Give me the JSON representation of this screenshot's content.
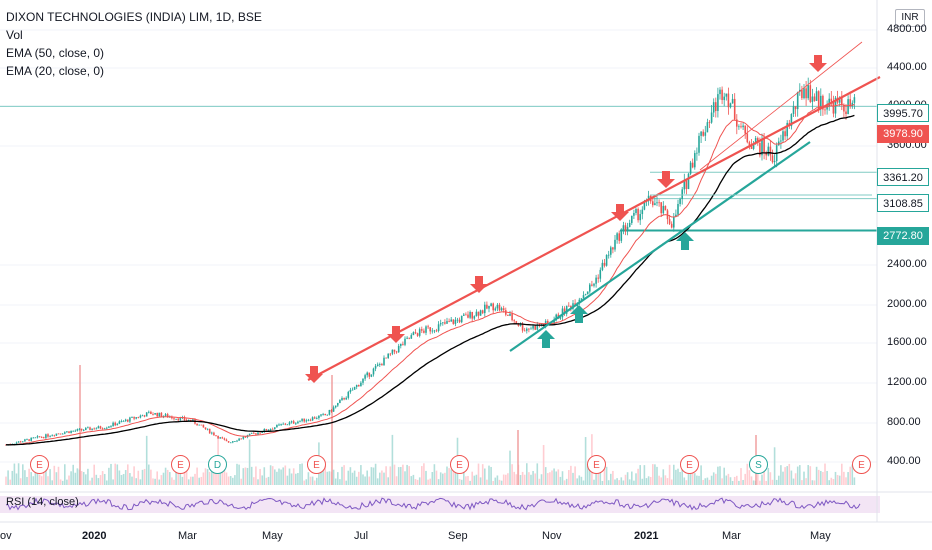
{
  "legend": {
    "title": "DIXON TECHNOLOGIES (INDIA) LIM, 1D, BSE",
    "vol": "Vol",
    "ema50": "EMA (50, close, 0)",
    "ema20": "EMA (20, close, 0)"
  },
  "currency": "INR",
  "rsi_label": "RSI (14, close)",
  "colors": {
    "up": "#26a69a",
    "down": "#ef5350",
    "ema20": "#ef5350",
    "ema50": "#000000",
    "trend_red": "#ef5350",
    "trend_teal": "#26a69a",
    "rsi": "#7e57c2",
    "rsi_band": "#f3e5f5",
    "hline": "#80cbc4"
  },
  "chart_data": {
    "type": "candlestick",
    "symbol": "DIXON TECHNOLOGIES (INDIA) LIM",
    "interval": "1D",
    "exchange": "BSE",
    "currency": "INR",
    "y_ticks": [
      400,
      800,
      1200,
      1600,
      2000,
      2400,
      3600,
      4000,
      4400,
      4800
    ],
    "x_ticks": [
      "ov",
      "2020",
      "Mar",
      "May",
      "Jul",
      "Sep",
      "Nov",
      "2021",
      "Mar",
      "May"
    ],
    "price_labels": [
      {
        "value": "3995.70",
        "kind": "last"
      },
      {
        "value": "3978.90",
        "kind": "ema"
      },
      {
        "value": "3361.20",
        "kind": "level"
      },
      {
        "value": "3108.85",
        "kind": "level"
      },
      {
        "value": "2772.80",
        "kind": "level"
      }
    ],
    "horizontal_levels": [
      3995.7,
      3361.2,
      3108.85,
      2772.8
    ],
    "price_path": [
      [
        "2019-11-01",
        600
      ],
      [
        "2019-12-01",
        700
      ],
      [
        "2020-01-01",
        760
      ],
      [
        "2020-02-01",
        900
      ],
      [
        "2020-03-01",
        820
      ],
      [
        "2020-03-25",
        600
      ],
      [
        "2020-05-01",
        780
      ],
      [
        "2020-06-01",
        880
      ],
      [
        "2020-07-01",
        1300
      ],
      [
        "2020-08-01",
        1700
      ],
      [
        "2020-09-01",
        1850
      ],
      [
        "2020-09-25",
        2000
      ],
      [
        "2020-10-15",
        1750
      ],
      [
        "2020-11-01",
        1800
      ],
      [
        "2020-12-01",
        2200
      ],
      [
        "2020-12-20",
        2750
      ],
      [
        "2021-01-10",
        3100
      ],
      [
        "2021-01-25",
        2850
      ],
      [
        "2021-02-10",
        3600
      ],
      [
        "2021-03-01",
        4200
      ],
      [
        "2021-03-15",
        3700
      ],
      [
        "2021-04-05",
        3500
      ],
      [
        "2021-04-25",
        4200
      ],
      [
        "2021-05-05",
        4050
      ],
      [
        "2021-05-25",
        3995.7
      ]
    ],
    "event_markers": [
      {
        "label": "E",
        "kind": "earnings"
      },
      {
        "label": "E",
        "kind": "earnings"
      },
      {
        "label": "D",
        "kind": "dividend"
      },
      {
        "label": "E",
        "kind": "earnings"
      },
      {
        "label": "E",
        "kind": "earnings"
      },
      {
        "label": "E",
        "kind": "earnings"
      },
      {
        "label": "E",
        "kind": "earnings"
      },
      {
        "label": "S",
        "kind": "split"
      },
      {
        "label": "E",
        "kind": "earnings"
      }
    ],
    "annotations": "Red down-arrows at swing highs along rising red trendline; teal up-arrows at swing lows along rising teal trendline"
  }
}
